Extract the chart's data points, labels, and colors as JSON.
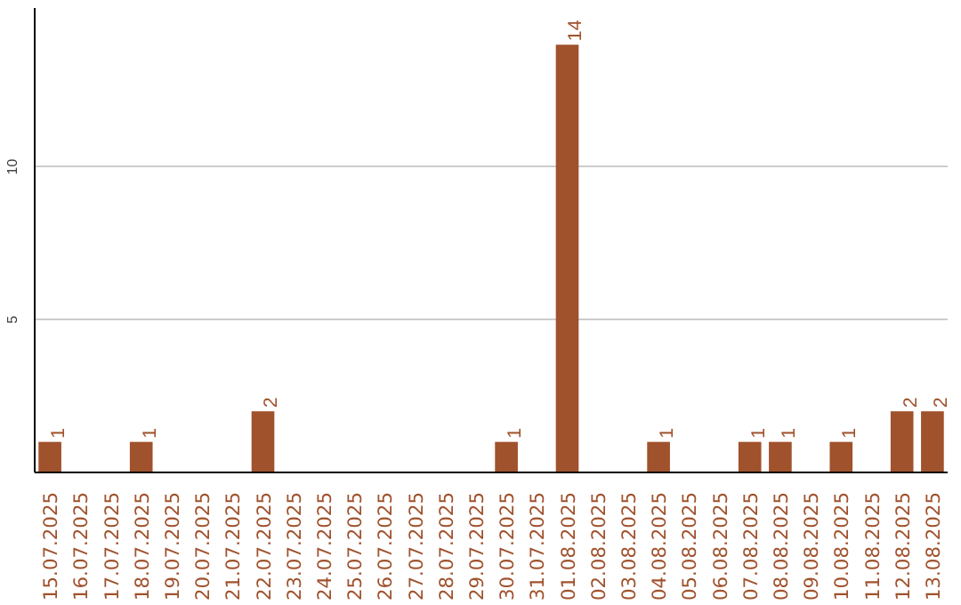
{
  "chart_data": {
    "type": "bar",
    "categories": [
      "15.07.2025",
      "16.07.2025",
      "17.07.2025",
      "18.07.2025",
      "19.07.2025",
      "20.07.2025",
      "21.07.2025",
      "22.07.2025",
      "23.07.2025",
      "24.07.2025",
      "25.07.2025",
      "26.07.2025",
      "27.07.2025",
      "28.07.2025",
      "29.07.2025",
      "30.07.2025",
      "31.07.2025",
      "01.08.2025",
      "02.08.2025",
      "03.08.2025",
      "04.08.2025",
      "05.08.2025",
      "06.08.2025",
      "07.08.2025",
      "08.08.2025",
      "09.08.2025",
      "10.08.2025",
      "11.08.2025",
      "12.08.2025",
      "13.08.2025"
    ],
    "values": [
      1,
      0,
      0,
      1,
      0,
      0,
      0,
      2,
      0,
      0,
      0,
      0,
      0,
      0,
      0,
      1,
      0,
      14,
      0,
      0,
      1,
      0,
      0,
      1,
      1,
      0,
      1,
      0,
      2,
      2
    ],
    "value_labels": [
      "1",
      null,
      null,
      "1",
      null,
      null,
      null,
      "2",
      null,
      null,
      null,
      null,
      null,
      null,
      null,
      "1",
      null,
      "14",
      null,
      null,
      "1",
      null,
      null,
      "1",
      "1",
      null,
      "1",
      null,
      "2",
      "2"
    ],
    "color": "#a0522d",
    "ylim": [
      0,
      15.2
    ],
    "yticks": [
      5,
      10
    ],
    "grid": "y"
  }
}
